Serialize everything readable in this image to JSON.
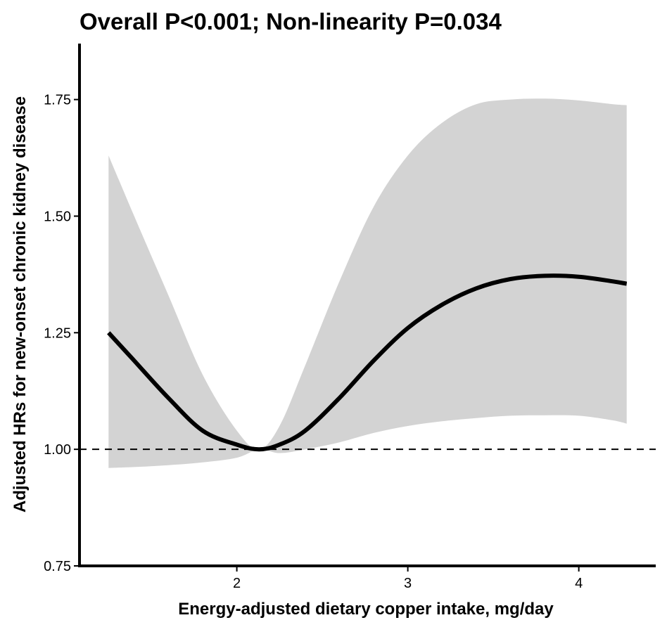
{
  "chart_data": {
    "type": "line",
    "title": "Overall P<0.001; Non-linearity P=0.034",
    "xlabel": "Energy-adjusted dietary copper intake, mg/day",
    "ylabel": "Adjusted HRs for new-onset chronic kidney disease",
    "xlim": [
      1.08,
      4.45
    ],
    "ylim": [
      0.75,
      1.87
    ],
    "x_ticks": [
      2,
      3,
      4
    ],
    "x_tick_labels": [
      "2",
      "3",
      "4"
    ],
    "y_ticks": [
      0.75,
      1.0,
      1.25,
      1.5,
      1.75
    ],
    "y_tick_labels": [
      "0.75",
      "1.00",
      "1.25",
      "1.50",
      "1.75"
    ],
    "reference_line": {
      "y": 1.0,
      "style": "dashed"
    },
    "grid": false,
    "legend": "none",
    "colors": {
      "line": "#000000",
      "ribbon": "#d3d3d3",
      "reference": "#000000"
    },
    "series": [
      {
        "x": [
          1.25,
          1.4,
          1.6,
          1.8,
          2.0,
          2.13,
          2.25,
          2.4,
          2.6,
          2.8,
          3.0,
          3.2,
          3.4,
          3.6,
          3.8,
          4.0,
          4.2,
          4.28
        ],
        "y": [
          1.25,
          1.19,
          1.11,
          1.04,
          1.01,
          1.0,
          1.01,
          1.04,
          1.11,
          1.19,
          1.26,
          1.31,
          1.345,
          1.365,
          1.372,
          1.37,
          1.36,
          1.355
        ],
        "lower": [
          0.96,
          0.962,
          0.966,
          0.972,
          0.982,
          1.0,
          0.992,
          1.0,
          1.015,
          1.035,
          1.05,
          1.06,
          1.067,
          1.072,
          1.073,
          1.072,
          1.062,
          1.055
        ],
        "upper": [
          1.63,
          1.5,
          1.33,
          1.16,
          1.04,
          1.0,
          1.05,
          1.18,
          1.36,
          1.52,
          1.63,
          1.7,
          1.74,
          1.75,
          1.752,
          1.748,
          1.74,
          1.738
        ]
      }
    ]
  }
}
